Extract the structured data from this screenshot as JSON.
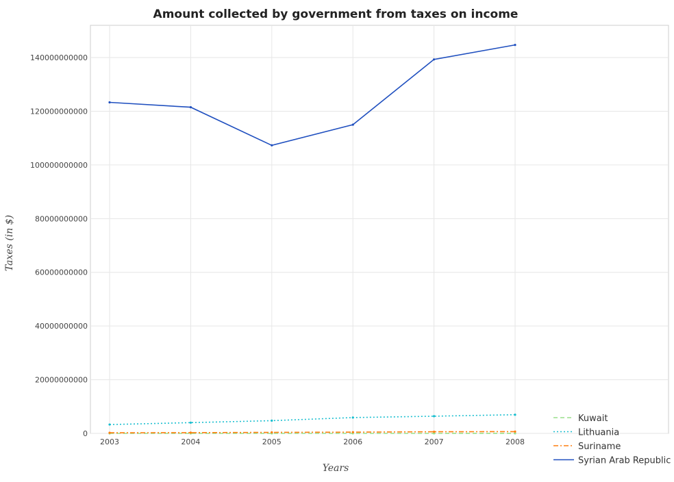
{
  "chart_data": {
    "type": "line",
    "title": "Amount collected by government from taxes on income",
    "xlabel": "Years",
    "ylabel": "Taxes (in $)",
    "x": [
      "2003",
      "2004",
      "2005",
      "2006",
      "2007",
      "2008"
    ],
    "ylim": [
      0,
      152000000000
    ],
    "yticks": [
      0,
      20000000000,
      40000000000,
      60000000000,
      80000000000,
      100000000000,
      120000000000,
      140000000000
    ],
    "ytick_labels": [
      "0",
      "20000000000",
      "40000000000",
      "60000000000",
      "80000000000",
      "100000000000",
      "120000000000",
      "140000000000"
    ],
    "grid": true,
    "legend_position": "bottom-right",
    "series": [
      {
        "name": "Kuwait",
        "color": "#98df8a",
        "dash": "dashed",
        "values": [
          5000000,
          6000000,
          8000000,
          10000000,
          12000000,
          13000000
        ]
      },
      {
        "name": "Lithuania",
        "color": "#17becf",
        "dash": "dotted",
        "values": [
          3300000000,
          4000000000,
          4750000000,
          5900000000,
          6400000000,
          6950000000
        ]
      },
      {
        "name": "Suriname",
        "color": "#ff7f0e",
        "dash": "dashdot",
        "values": [
          230000000,
          290000000,
          390000000,
          460000000,
          610000000,
          670000000
        ]
      },
      {
        "name": "Syrian Arab Republic",
        "color": "#1f4fbf",
        "dash": "solid",
        "values": [
          123300000000,
          121500000000,
          107300000000,
          115000000000,
          139300000000,
          144700000000
        ]
      }
    ]
  }
}
